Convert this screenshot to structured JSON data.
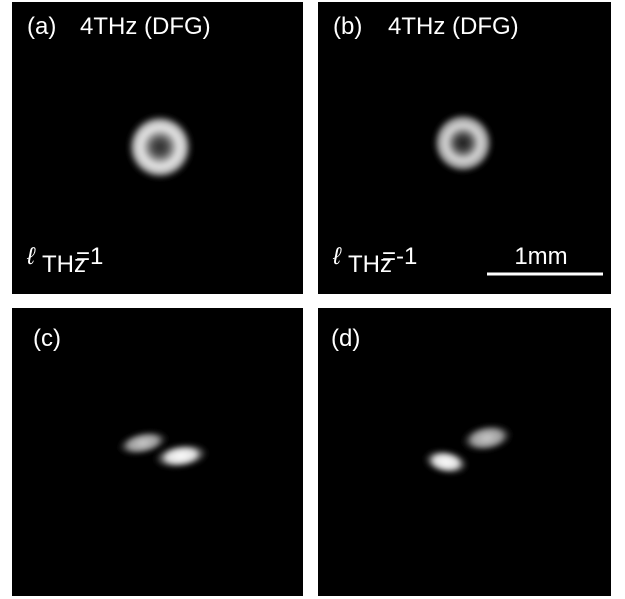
{
  "panels": [
    {
      "label": "(a)",
      "title": "4THz (DFG)",
      "mode_symbol": "ℓ",
      "mode_subscript": "THz",
      "mode_value": "=1"
    },
    {
      "label": "(b)",
      "title": "4THz (DFG)",
      "mode_symbol": "ℓ",
      "mode_subscript": "THz",
      "mode_value": "=-1",
      "scale_bar": "1mm"
    },
    {
      "label": "(c)"
    },
    {
      "label": "(d)"
    }
  ]
}
